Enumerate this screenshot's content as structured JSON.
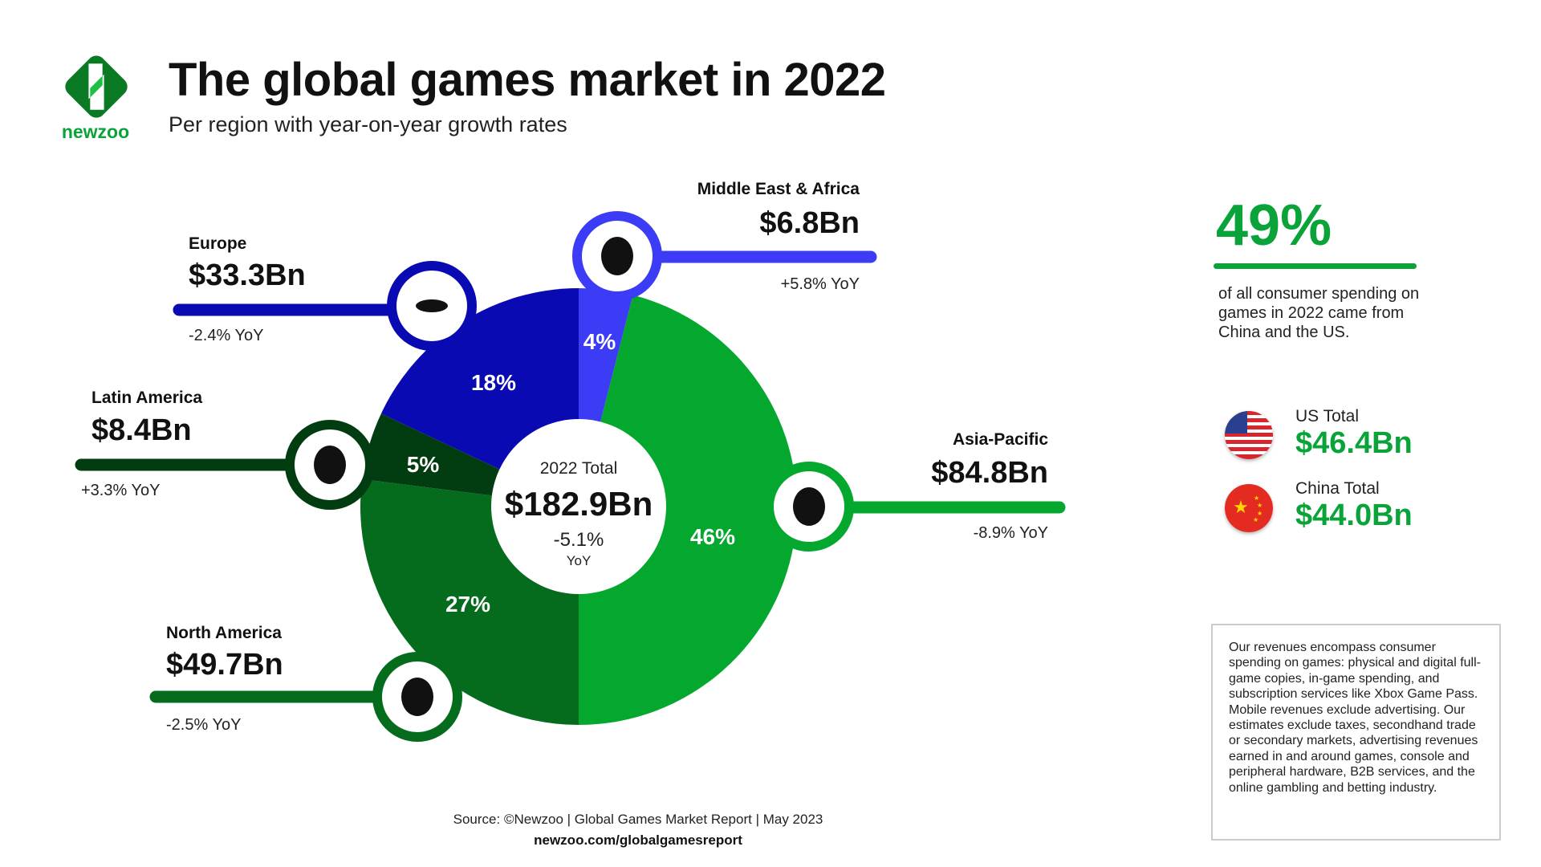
{
  "header": {
    "title": "The global games market in 2022",
    "subtitle": "Per region with year-on-year growth rates",
    "logo_text": "newzoo"
  },
  "chart_data": {
    "type": "pie",
    "style": "donut",
    "center": {
      "label": "2022 Total",
      "value": "$182.9Bn",
      "growth": "-5.1%",
      "growth_unit": "YoY"
    },
    "slices": [
      {
        "name": "Middle East & Africa",
        "value_bn": 6.8,
        "value_label": "$6.8Bn",
        "percent": 4,
        "percent_label": "4%",
        "yoy": "+5.8% YoY",
        "color": "#3c3cf6",
        "icon": "africa-map-icon"
      },
      {
        "name": "Asia-Pacific",
        "value_bn": 84.8,
        "value_label": "$84.8Bn",
        "percent": 46,
        "percent_label": "46%",
        "yoy": "-8.9% YoY",
        "color": "#05a82f",
        "icon": "asia-pacific-map-icon"
      },
      {
        "name": "North America",
        "value_bn": 49.7,
        "value_label": "$49.7Bn",
        "percent": 27,
        "percent_label": "27%",
        "yoy": "-2.5% YoY",
        "color": "#046c1c",
        "icon": "north-america-map-icon"
      },
      {
        "name": "Latin America",
        "value_bn": 8.4,
        "value_label": "$8.4Bn",
        "percent": 5,
        "percent_label": "5%",
        "yoy": "+3.3% YoY",
        "color": "#023d12",
        "icon": "south-america-map-icon"
      },
      {
        "name": "Europe",
        "value_bn": 33.3,
        "value_label": "$33.3Bn",
        "percent": 18,
        "percent_label": "18%",
        "yoy": "-2.4% YoY",
        "color": "#0a0ab2",
        "icon": "europe-map-icon"
      }
    ]
  },
  "sidebar": {
    "big_stat": "49%",
    "big_stat_text": "of all consumer spending on games in 2022 came from China and the US.",
    "us": {
      "label": "US Total",
      "value": "$46.4Bn",
      "icon": "us-flag-icon"
    },
    "china": {
      "label": "China Total",
      "value": "$44.0Bn",
      "icon": "china-flag-icon"
    },
    "note": "Our revenues encompass consumer spending on games: physical and digital full-game copies, in-game spending, and subscription services like Xbox Game Pass. Mobile revenues exclude advertising. Our estimates exclude taxes, secondhand trade or secondary markets, advertising revenues earned in and around games, console and peripheral hardware, B2B services, and the online gambling and betting industry."
  },
  "footer": {
    "source": "Source: ©Newzoo | Global Games Market Report | May 2023",
    "url": "newzoo.com/globalgamesreport"
  }
}
